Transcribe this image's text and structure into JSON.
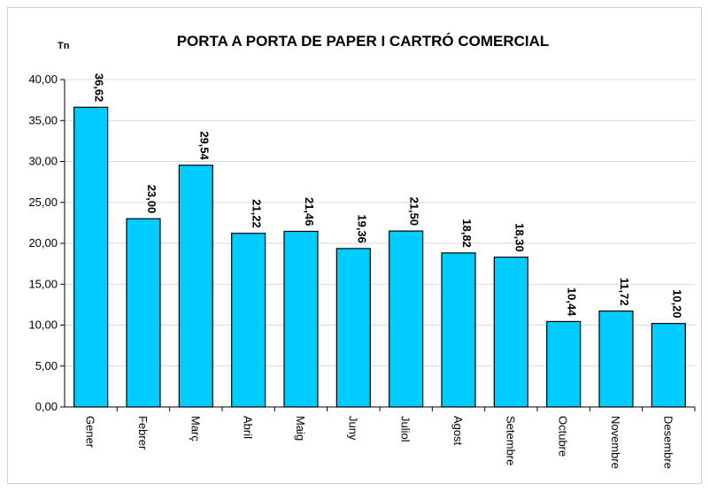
{
  "chart_data": {
    "type": "bar",
    "title": "PORTA A PORTA  DE PAPER I CARTRÓ COMERCIAL",
    "unit_label": "Tn",
    "categories": [
      "Gener",
      "Febrer",
      "Març",
      "Abril",
      "Maig",
      "Juny",
      "Juliol",
      "Agost",
      "Setembre",
      "Octubre",
      "Novembre",
      "Desembre"
    ],
    "values": [
      36.62,
      23.0,
      29.54,
      21.22,
      21.46,
      19.36,
      21.5,
      18.82,
      18.3,
      10.44,
      11.72,
      10.2
    ],
    "value_labels": [
      "36,62",
      "23,00",
      "29,54",
      "21,22",
      "21,46",
      "19,36",
      "21,50",
      "18,82",
      "18,30",
      "10,44",
      "11,72",
      "10,20"
    ],
    "y_ticks": [
      "0,00",
      "5,00",
      "10,00",
      "15,00",
      "20,00",
      "25,00",
      "30,00",
      "35,00",
      "40,00"
    ],
    "ylim": [
      0,
      40
    ],
    "grid": true,
    "bar_color": "#00ccff",
    "legend": "none"
  }
}
